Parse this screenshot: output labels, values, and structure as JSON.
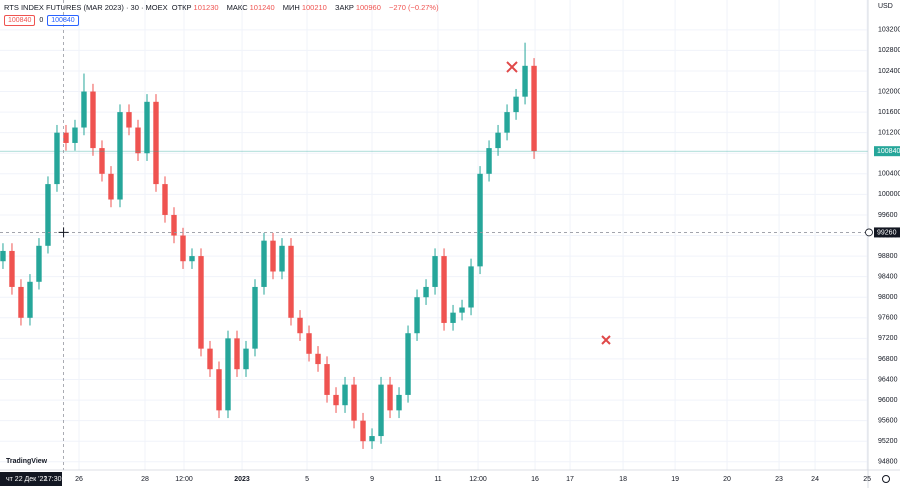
{
  "header": {
    "title": "RTS INDEX FUTURES (MAR 2023) · 30 · MOEX",
    "open_label": "ОТКР",
    "open": 101230,
    "high_label": "МАКС",
    "high": 101240,
    "low_label": "МИН",
    "low": 100210,
    "close_label": "ЗАКР",
    "close": 100960,
    "change": "−270 (−0.27%)",
    "buttons": [
      "100840",
      "0",
      "100840"
    ],
    "currency": "USD",
    "logo": "TradingView"
  },
  "chart_data": {
    "type": "candlestick",
    "x": [
      0,
      1,
      2,
      3,
      4,
      5,
      6,
      7,
      8,
      9,
      10,
      11,
      12,
      13,
      14,
      15,
      16,
      17,
      18,
      19,
      20,
      21,
      22,
      23,
      24,
      25,
      26,
      27,
      28,
      29,
      30,
      31,
      32,
      33,
      34,
      35,
      36,
      37,
      38,
      39,
      40,
      41,
      42,
      43,
      44,
      45,
      46,
      47,
      48,
      49,
      50,
      51,
      52,
      53,
      54,
      55,
      56,
      57,
      58,
      59
    ],
    "open": [
      98700,
      98900,
      98200,
      97600,
      98300,
      99000,
      100200,
      101200,
      101000,
      101300,
      102000,
      100900,
      100400,
      99900,
      101600,
      101300,
      100800,
      101800,
      100200,
      99600,
      99200,
      98700,
      98800,
      97000,
      96600,
      95800,
      97200,
      96600,
      97000,
      98200,
      99100,
      98500,
      99000,
      97600,
      97300,
      96900,
      96700,
      96100,
      95900,
      96300,
      95600,
      95200,
      95300,
      96300,
      95800,
      96100,
      97300,
      98000,
      98200,
      98800,
      97500,
      97700,
      97800,
      98600,
      100400,
      100900,
      101200,
      101600,
      101900,
      102500
    ],
    "high": [
      99050,
      99050,
      98350,
      98450,
      99150,
      100350,
      101350,
      101350,
      101450,
      102350,
      102150,
      101050,
      100550,
      101750,
      101750,
      101450,
      101950,
      101950,
      100350,
      99750,
      99350,
      98950,
      98950,
      97150,
      96750,
      97350,
      97350,
      97150,
      98350,
      99250,
      99250,
      99150,
      99150,
      97750,
      97450,
      97050,
      96850,
      96250,
      96450,
      96450,
      95750,
      95450,
      96450,
      96450,
      96250,
      97450,
      98150,
      98350,
      98950,
      98950,
      97850,
      97950,
      98750,
      100550,
      101050,
      101350,
      101750,
      102050,
      102950,
      102650
    ],
    "low": [
      98550,
      98050,
      97450,
      97450,
      98150,
      98850,
      100050,
      100850,
      100850,
      101150,
      100750,
      100250,
      99750,
      99750,
      101150,
      100650,
      100650,
      100050,
      99450,
      99050,
      98550,
      98550,
      96850,
      96450,
      95650,
      95650,
      96450,
      96450,
      96850,
      98050,
      98350,
      98350,
      97450,
      97150,
      96750,
      96550,
      95950,
      95750,
      95750,
      95450,
      95050,
      95050,
      95150,
      95650,
      95650,
      95950,
      97150,
      97850,
      98050,
      97350,
      97350,
      97550,
      97650,
      98450,
      100250,
      100750,
      101050,
      101450,
      101750,
      100690
    ],
    "close": [
      98900,
      98200,
      97600,
      98300,
      99000,
      100200,
      101200,
      101000,
      101300,
      102000,
      100900,
      100400,
      99900,
      101600,
      101300,
      100800,
      101800,
      100200,
      99600,
      99200,
      98700,
      98800,
      97000,
      96600,
      95800,
      97200,
      96600,
      97000,
      98200,
      99100,
      98500,
      99000,
      97600,
      97300,
      96900,
      96700,
      96100,
      95900,
      96300,
      95600,
      95200,
      95300,
      96300,
      95800,
      96100,
      97300,
      98000,
      98200,
      98800,
      97500,
      97700,
      97800,
      98600,
      100400,
      100900,
      101200,
      101600,
      101900,
      102500,
      100840
    ],
    "up_color": "#26a69a",
    "down_color": "#ef5350",
    "xlim": [
      -0.33,
      96.1
    ],
    "ylim": [
      94640,
      103780
    ],
    "xticks": [
      {
        "value": 8.45,
        "label": "26"
      },
      {
        "value": 15.78,
        "label": "28"
      },
      {
        "value": 20.11,
        "label": "12:00"
      },
      {
        "value": 26.56,
        "label": "2023"
      },
      {
        "value": 33.78,
        "label": "5"
      },
      {
        "value": 41.0,
        "label": "9"
      },
      {
        "value": 48.33,
        "label": "11"
      },
      {
        "value": 52.78,
        "label": "12:00"
      },
      {
        "value": 59.11,
        "label": "16"
      },
      {
        "value": 63.0,
        "label": "17"
      },
      {
        "value": 68.89,
        "label": "18"
      },
      {
        "value": 74.67,
        "label": "19"
      },
      {
        "value": 80.44,
        "label": "20"
      },
      {
        "value": 86.22,
        "label": "23"
      },
      {
        "value": 90.22,
        "label": "24"
      },
      {
        "value": 96.0,
        "label": "25"
      }
    ],
    "yticks": [
      94800,
      95200,
      95600,
      96000,
      96400,
      96800,
      97200,
      97600,
      98000,
      98400,
      98800,
      99200,
      99600,
      100000,
      100400,
      100800,
      101200,
      101600,
      102000,
      102400,
      102800,
      103200
    ],
    "grid": true,
    "last_price": 100840,
    "crosshair_price": 99260,
    "crosshair_x": 3.4,
    "crosshair_date": "чт 22 Дек '22",
    "crosshair_time": "17:30"
  }
}
